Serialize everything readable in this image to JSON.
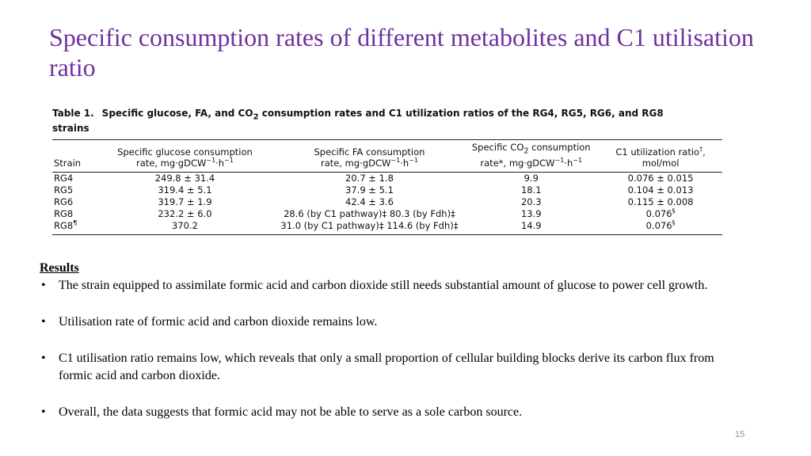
{
  "title": "Specific consumption rates of different metabolites and C1 utilisation ratio",
  "table": {
    "number": "Table 1.",
    "caption_prefix": "Specific glucose, FA, and CO",
    "caption_sub": "2",
    "caption_suffix": " consumption rates and C1 utilization ratios of the RG4, RG5, RG6, and RG8 strains",
    "headers": {
      "strain": "Strain",
      "glucose_line1": "Specific glucose consumption",
      "glucose_line2": "rate, mg·gDCW",
      "fa_line1": "Specific FA consumption",
      "fa_line2": "rate, mg·gDCW",
      "co2_line1_prefix": "Specific CO",
      "co2_line1_sub": "2",
      "co2_line1_suffix": " consumption",
      "co2_line2": "rate*, mg·gDCW",
      "unit_sup": "−1",
      "unit_h": "·h",
      "c1_line1": "C1 utilization ratio",
      "c1_line1_sup": "†",
      "c1_line1_comma": ",",
      "c1_line2": "mol/mol"
    },
    "rows": [
      {
        "strain": "RG4",
        "strain_sup": "",
        "glucose": "249.8 ± 31.4",
        "fa": "20.7 ± 1.8",
        "co2": "9.9",
        "c1": "0.076 ± 0.015",
        "c1_sup": ""
      },
      {
        "strain": "RG5",
        "strain_sup": "",
        "glucose": "319.4 ± 5.1",
        "fa": "37.9 ± 5.1",
        "co2": "18.1",
        "c1": "0.104 ± 0.013",
        "c1_sup": ""
      },
      {
        "strain": "RG6",
        "strain_sup": "",
        "glucose": "319.7 ± 1.9",
        "fa": "42.4 ± 3.6",
        "co2": "20.3",
        "c1": "0.115 ± 0.008",
        "c1_sup": ""
      },
      {
        "strain": "RG8",
        "strain_sup": "",
        "glucose": "232.2 ± 6.0",
        "fa": "28.6 (by C1 pathway)‡ 80.3 (by Fdh)‡",
        "co2": "13.9",
        "c1": "0.076",
        "c1_sup": "§"
      },
      {
        "strain": "RG8",
        "strain_sup": "¶",
        "glucose": "370.2",
        "fa": "31.0 (by C1 pathway)‡ 114.6 (by Fdh)‡",
        "co2": "14.9",
        "c1": "0.076",
        "c1_sup": "§"
      }
    ]
  },
  "results": {
    "heading": "Results",
    "bullet_char": "•",
    "bullets": [
      "The strain equipped to assimilate formic acid and carbon dioxide still needs substantial amount of glucose to power cell growth.",
      "Utilisation rate of formic acid and carbon dioxide remains low.",
      "C1 utilisation ratio remains low, which reveals that only a small proportion of cellular building blocks derive its carbon flux from formic acid and carbon dioxide.",
      "Overall, the data suggests that formic acid may not be able to serve as a sole carbon source."
    ]
  },
  "page_number": "15",
  "colors": {
    "title": "#7030a0",
    "page_number": "#8c8c8c"
  }
}
